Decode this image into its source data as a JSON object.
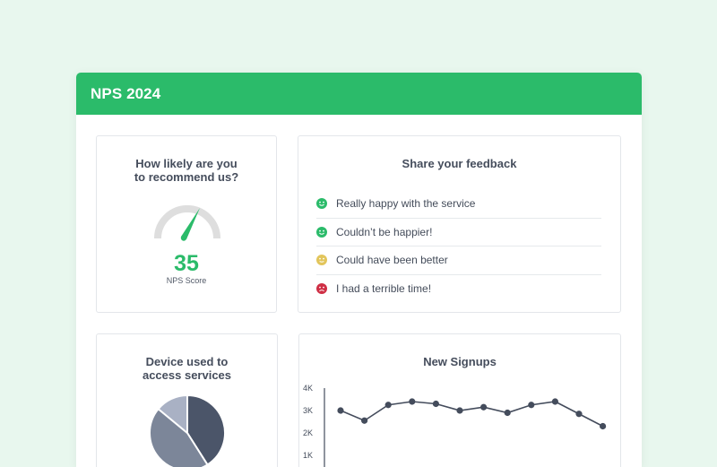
{
  "header": {
    "title": "NPS 2024"
  },
  "colors": {
    "brand": "#2bbb6a",
    "happy": "#2bbb6a",
    "neutral": "#e2c55b",
    "sad": "#cf2f45",
    "gauge_track": "#dedede"
  },
  "nps_card": {
    "title_line1": "How likely are you",
    "title_line2": "to recommend us?",
    "score": "35",
    "score_label": "NPS Score"
  },
  "feedback_card": {
    "title": "Share your feedback",
    "items": [
      {
        "text": "Really happy with the service",
        "icon": "smile-icon",
        "color": "#2bbb6a"
      },
      {
        "text": "Couldn’t be happier!",
        "icon": "smile-icon",
        "color": "#2bbb6a"
      },
      {
        "text": "Could have been better",
        "icon": "meh-icon",
        "color": "#e2c55b"
      },
      {
        "text": "I had a terrible time!",
        "icon": "frown-icon",
        "color": "#cf2f45"
      }
    ]
  },
  "device_card": {
    "title_line1": "Device used to",
    "title_line2": "access services"
  },
  "chart_data": [
    {
      "type": "pie",
      "title": "Device used to access services",
      "values": [
        41,
        45,
        14
      ],
      "colors": [
        "#4b5569",
        "#7c8699",
        "#a9b1c4"
      ]
    },
    {
      "type": "line",
      "title": "New Signups",
      "x": [
        1,
        2,
        3,
        4,
        5,
        6,
        7,
        8,
        9,
        10,
        11,
        12
      ],
      "values": [
        3000,
        2550,
        3250,
        3400,
        3300,
        3000,
        3150,
        2900,
        3250,
        3400,
        2850,
        2300
      ],
      "ylim": [
        0,
        4000
      ],
      "yticks": [
        1000,
        2000,
        3000,
        4000
      ],
      "ytick_labels": [
        "1K",
        "2K",
        "3K",
        "4K"
      ],
      "color": "#444c5c"
    }
  ]
}
